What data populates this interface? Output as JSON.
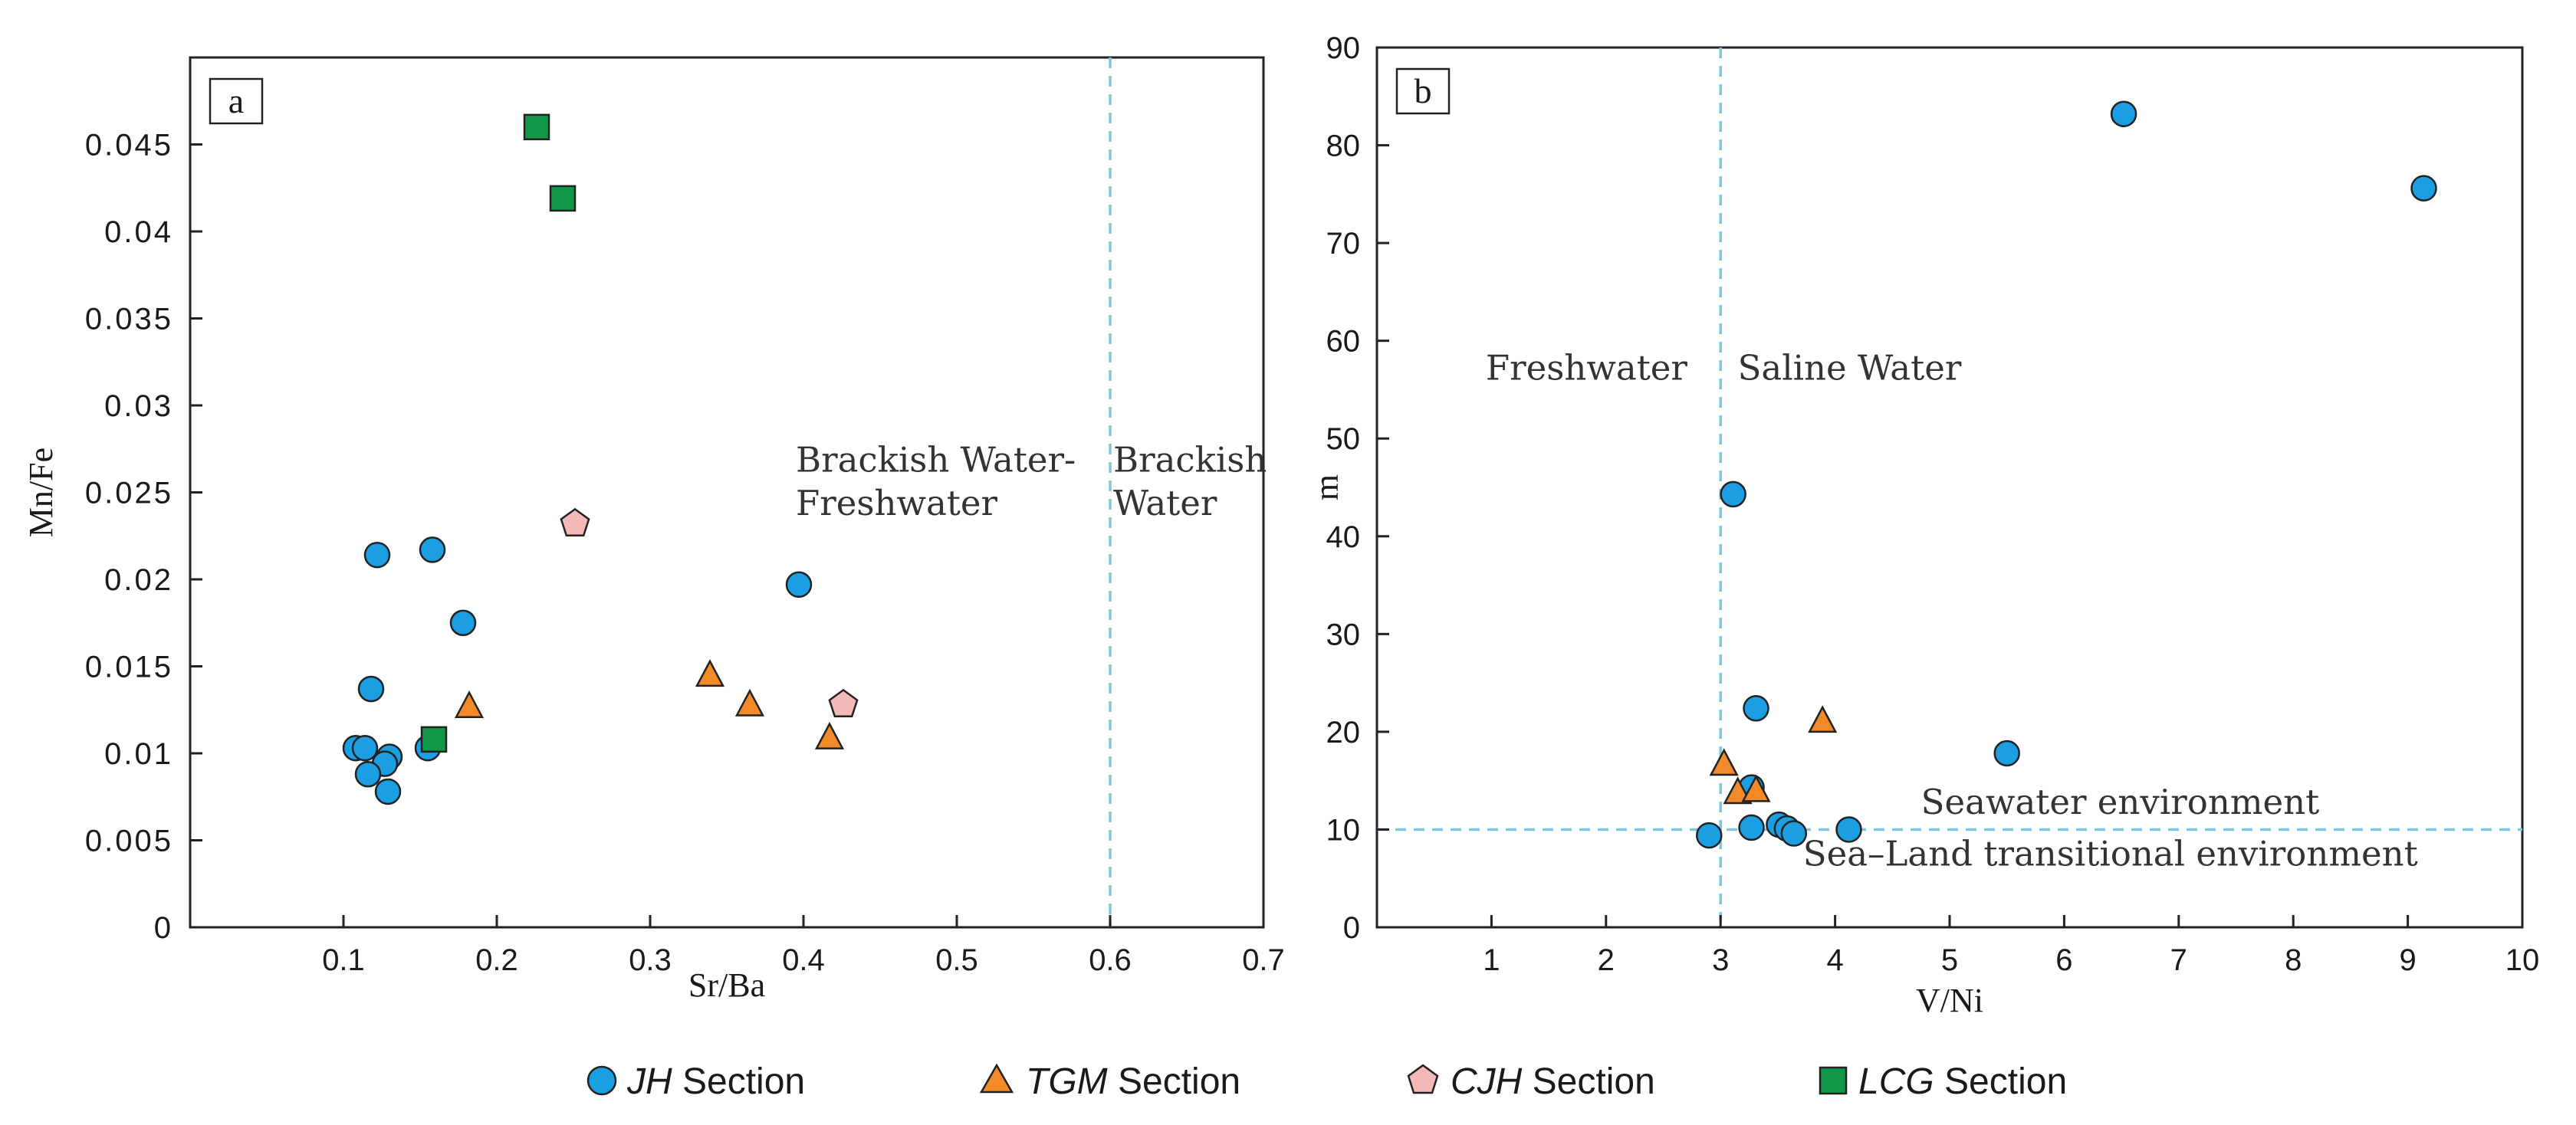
{
  "colors": {
    "JH": "#1b9ee2",
    "TGM": "#f28a2a",
    "CJH": "#f3b9b6",
    "LCG": "#129648",
    "guide": "#7cc6e4",
    "stroke": "#222222"
  },
  "chart_data": [
    {
      "type": "scatter",
      "panel_label": "a",
      "xlabel": "Sr/Ba",
      "ylabel": "Mn/Fe",
      "xlim": [
        0,
        0.7
      ],
      "ylim": [
        0,
        0.05
      ],
      "x_ticks": [
        0.1,
        0.2,
        0.3,
        0.4,
        0.5,
        0.6,
        0.7
      ],
      "x_tick_labels": [
        "0.1",
        "0.2",
        "0.3",
        "0.4",
        "0.5",
        "0.6",
        "0.7"
      ],
      "y_ticks": [
        0,
        0.005,
        0.01,
        0.015,
        0.02,
        0.025,
        0.03,
        0.035,
        0.04,
        0.045
      ],
      "y_tick_labels": [
        "0",
        "0.005",
        "0.01",
        "0.015",
        "0.02",
        "0.025",
        "0.03",
        "0.035",
        "0.04",
        "0.045"
      ],
      "guides": [
        {
          "axis": "x",
          "value": 0.6
        }
      ],
      "annotations": [
        {
          "text": "Brackish Water-",
          "x": 0.395,
          "y": 0.0262
        },
        {
          "text": "Freshwater",
          "x": 0.395,
          "y": 0.0237
        },
        {
          "text": "Brackish",
          "x": 0.602,
          "y": 0.0262
        },
        {
          "text": "Water",
          "x": 0.602,
          "y": 0.0237
        }
      ],
      "series": [
        {
          "name": "JH",
          "marker": "circle",
          "points": [
            [
              0.122,
              0.0214
            ],
            [
              0.158,
              0.0217
            ],
            [
              0.178,
              0.0175
            ],
            [
              0.118,
              0.0137
            ],
            [
              0.108,
              0.0103
            ],
            [
              0.114,
              0.0103
            ],
            [
              0.155,
              0.0103
            ],
            [
              0.13,
              0.0098
            ],
            [
              0.127,
              0.0094
            ],
            [
              0.116,
              0.0088
            ],
            [
              0.129,
              0.0078
            ],
            [
              0.397,
              0.0197
            ]
          ]
        },
        {
          "name": "TGM",
          "marker": "triangle",
          "points": [
            [
              0.182,
              0.0127
            ],
            [
              0.339,
              0.0145
            ],
            [
              0.365,
              0.0128
            ],
            [
              0.417,
              0.0109
            ]
          ]
        },
        {
          "name": "CJH",
          "marker": "pentagon",
          "points": [
            [
              0.251,
              0.0232
            ],
            [
              0.426,
              0.0128
            ]
          ]
        },
        {
          "name": "LCG",
          "marker": "square",
          "points": [
            [
              0.226,
              0.046
            ],
            [
              0.243,
              0.0419
            ],
            [
              0.159,
              0.0108
            ]
          ]
        }
      ]
    },
    {
      "type": "scatter",
      "panel_label": "b",
      "xlabel": "V/Ni",
      "ylabel": "m",
      "xlim": [
        0,
        10
      ],
      "ylim": [
        0,
        90
      ],
      "x_ticks": [
        1,
        2,
        3,
        4,
        5,
        6,
        7,
        8,
        9,
        10
      ],
      "x_tick_labels": [
        "1",
        "2",
        "3",
        "4",
        "5",
        "6",
        "7",
        "8",
        "9",
        "10"
      ],
      "y_ticks": [
        0,
        10,
        20,
        30,
        40,
        50,
        60,
        70,
        80,
        90
      ],
      "y_tick_labels": [
        "0",
        "10",
        "20",
        "30",
        "40",
        "50",
        "60",
        "70",
        "80",
        "90"
      ],
      "guides": [
        {
          "axis": "x",
          "value": 3
        },
        {
          "axis": "y",
          "value": 10
        }
      ],
      "annotations": [
        {
          "text": "Freshwater",
          "x": 0.95,
          "y": 56
        },
        {
          "text": "Saline  Water",
          "x": 3.15,
          "y": 56
        },
        {
          "text": "Seawater environment",
          "x": 4.75,
          "y": 11.6
        },
        {
          "text": "Sea–Land transitional environment",
          "x": 3.72,
          "y": 6.3
        }
      ],
      "series": [
        {
          "name": "JH",
          "marker": "circle",
          "points": [
            [
              6.52,
              83.2
            ],
            [
              9.14,
              75.6
            ],
            [
              3.11,
              44.3
            ],
            [
              3.31,
              22.4
            ],
            [
              5.5,
              17.8
            ],
            [
              3.27,
              14.3
            ],
            [
              3.51,
              10.5
            ],
            [
              3.58,
              10.1
            ],
            [
              4.12,
              10.0
            ],
            [
              3.27,
              10.2
            ],
            [
              2.9,
              9.4
            ],
            [
              3.64,
              9.6
            ]
          ]
        },
        {
          "name": "TGM",
          "marker": "triangle",
          "points": [
            [
              3.03,
              16.7
            ],
            [
              3.89,
              21.1
            ],
            [
              3.15,
              13.8
            ],
            [
              3.31,
              14.0
            ]
          ]
        },
        {
          "name": "CJH",
          "marker": "pentagon",
          "points": []
        },
        {
          "name": "LCG",
          "marker": "square",
          "points": []
        }
      ]
    }
  ],
  "legend": {
    "items": [
      {
        "key": "JH",
        "italic_label": "JH",
        "suffix": " Section"
      },
      {
        "key": "TGM",
        "italic_label": "TGM",
        "suffix": " Section"
      },
      {
        "key": "CJH",
        "italic_label": "CJH",
        "suffix": " Section"
      },
      {
        "key": "LCG",
        "italic_label": "LCG",
        "suffix": " Section"
      }
    ]
  }
}
